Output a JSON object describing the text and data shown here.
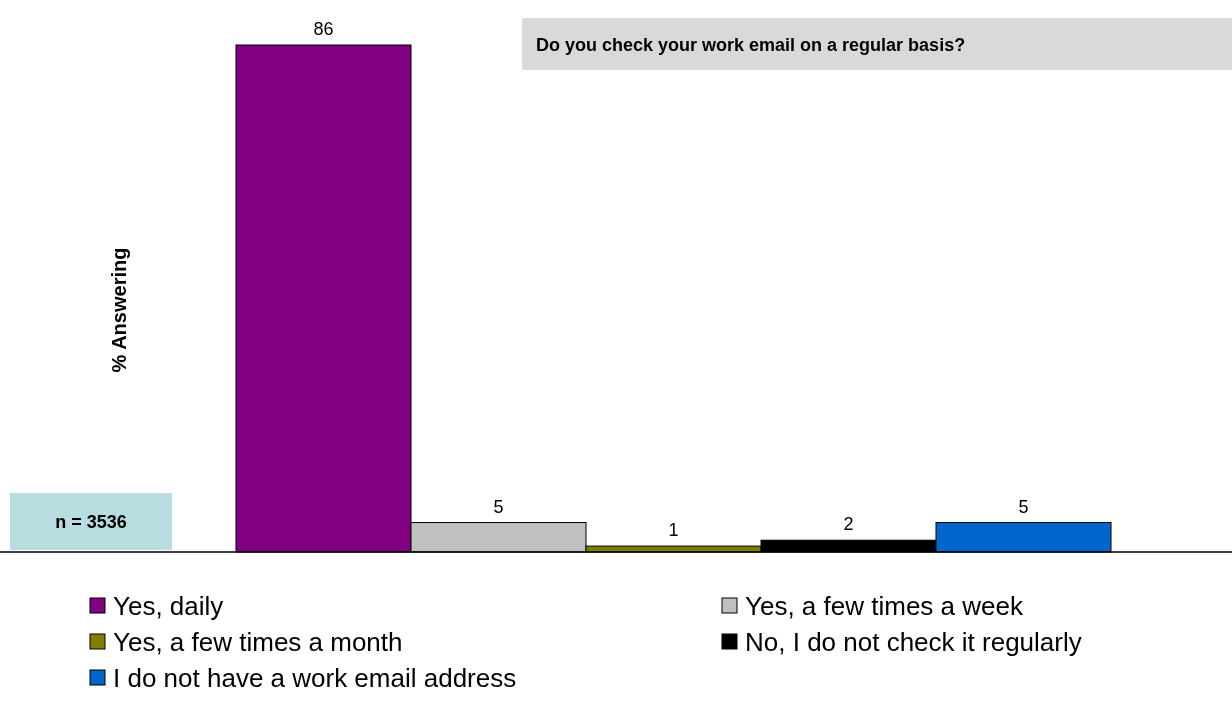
{
  "chart_data": {
    "type": "bar",
    "title": "Do you check your work email on a regular basis?",
    "categories": [
      null
    ],
    "series": [
      {
        "name": "Yes, daily",
        "color": "#800080",
        "values": [
          86
        ]
      },
      {
        "name": "Yes, a few times a week",
        "color": "#c0c0c0",
        "values": [
          5
        ]
      },
      {
        "name": "Yes, a few times a month",
        "color": "#808000",
        "values": [
          1
        ]
      },
      {
        "name": "No, I do not check it regularly",
        "color": "#000000",
        "values": [
          2
        ]
      },
      {
        "name": "I do not have a work email address",
        "color": "#0066cc",
        "values": [
          5
        ]
      }
    ],
    "data_labels": true,
    "legend": "bottom",
    "annotations": [
      "% Answering",
      "n = 3536"
    ]
  }
}
